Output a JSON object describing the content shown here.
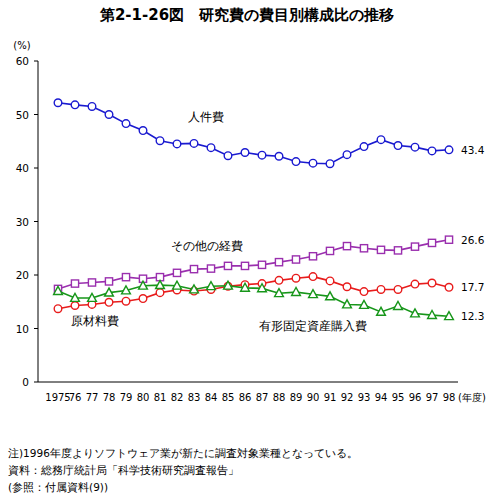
{
  "chart_data": {
    "type": "line",
    "title": "第2-1-26図　研究費の費目別構成比の推移",
    "y_label": "(%)",
    "x_label": "(年度)",
    "categories": [
      "1975",
      "76",
      "77",
      "78",
      "79",
      "80",
      "81",
      "82",
      "83",
      "84",
      "85",
      "86",
      "87",
      "88",
      "89",
      "90",
      "91",
      "92",
      "93",
      "94",
      "95",
      "96",
      "97",
      "98"
    ],
    "ylim": [
      0,
      60
    ],
    "yticks": [
      0,
      10,
      20,
      30,
      40,
      50,
      60
    ],
    "grid": false,
    "series": [
      {
        "name": "人件費",
        "color": "#1a1ad0",
        "marker": "circle",
        "values": [
          52.2,
          51.8,
          51.5,
          50.0,
          48.3,
          47.0,
          45.1,
          44.5,
          44.6,
          43.8,
          42.3,
          42.9,
          42.4,
          42.2,
          41.2,
          40.9,
          40.8,
          42.5,
          44.0,
          45.3,
          44.2,
          43.9,
          43.2,
          43.4
        ],
        "value_labels": [
          null,
          null,
          null,
          null,
          null,
          null,
          null,
          null,
          null,
          null,
          null,
          null,
          null,
          null,
          null,
          null,
          null,
          null,
          null,
          null,
          null,
          null,
          null,
          "43.4"
        ]
      },
      {
        "name": "その他の経費",
        "color": "#9a2fae",
        "marker": "square",
        "values": [
          17.4,
          18.4,
          18.6,
          18.8,
          19.6,
          19.3,
          19.6,
          20.4,
          21.1,
          21.2,
          21.7,
          21.7,
          21.9,
          22.4,
          22.9,
          23.5,
          24.5,
          25.4,
          25.0,
          24.7,
          24.6,
          25.3,
          26.0,
          26.6
        ],
        "value_labels": [
          null,
          null,
          null,
          null,
          null,
          null,
          null,
          null,
          null,
          null,
          null,
          null,
          null,
          null,
          null,
          null,
          null,
          null,
          null,
          null,
          null,
          null,
          null,
          "26.6"
        ]
      },
      {
        "name": "原材料費",
        "color": "#e81c1c",
        "marker": "circle",
        "values": [
          13.7,
          14.3,
          14.5,
          14.9,
          15.1,
          15.6,
          16.7,
          17.2,
          17.0,
          17.3,
          17.9,
          18.2,
          18.4,
          19.0,
          19.4,
          19.7,
          18.9,
          17.8,
          16.9,
          17.3,
          17.3,
          18.3,
          18.5,
          17.7
        ],
        "value_labels": [
          null,
          null,
          null,
          null,
          null,
          null,
          null,
          null,
          null,
          null,
          null,
          null,
          null,
          null,
          null,
          null,
          null,
          null,
          null,
          null,
          null,
          null,
          null,
          "17.7"
        ]
      },
      {
        "name": "有形固定資産購入費",
        "color": "#17961a",
        "marker": "triangle",
        "values": [
          17.0,
          15.7,
          15.7,
          16.7,
          17.1,
          18.0,
          18.1,
          18.0,
          17.3,
          17.9,
          18.0,
          17.6,
          17.5,
          16.6,
          16.8,
          16.4,
          16.0,
          14.5,
          14.4,
          13.1,
          14.2,
          12.8,
          12.5,
          12.3
        ],
        "value_labels": [
          null,
          null,
          null,
          null,
          null,
          null,
          null,
          null,
          null,
          null,
          null,
          null,
          null,
          null,
          null,
          null,
          null,
          null,
          null,
          null,
          null,
          null,
          null,
          "12.3"
        ]
      }
    ],
    "notes": [
      "注)1996年度よりソフトウェア業が新たに調査対象業種となっている。",
      "資料：総務庁統計局「科学技術研究調査報告」",
      "(参照：付属資料(9))"
    ]
  }
}
